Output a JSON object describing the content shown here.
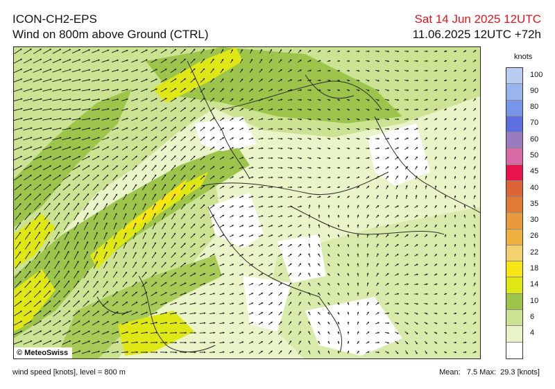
{
  "header": {
    "model": "ICON-CH2-EPS",
    "field": "Wind on 800m above Ground (CTRL)",
    "valid_time": "Sat 14 Jun 2025 12UTC",
    "run_time": "11.06.2025 12UTC +72h"
  },
  "map": {
    "copyright": "© MeteoSwiss",
    "background_color": "#fbfef0",
    "arrow_color": "#111111",
    "border_color": "#2a2a2a"
  },
  "legend": {
    "unit": "knots",
    "classes": [
      {
        "label": "100",
        "color": "#b9cdf3"
      },
      {
        "label": "90",
        "color": "#9ab4f0"
      },
      {
        "label": "80",
        "color": "#7896ea"
      },
      {
        "label": "70",
        "color": "#5c6ee0"
      },
      {
        "label": "60",
        "color": "#9b7bc0"
      },
      {
        "label": "50",
        "color": "#d96aa5"
      },
      {
        "label": "45",
        "color": "#e8134a"
      },
      {
        "label": "40",
        "color": "#de6436"
      },
      {
        "label": "35",
        "color": "#e07a35"
      },
      {
        "label": "30",
        "color": "#e89a3c"
      },
      {
        "label": "26",
        "color": "#f0b040"
      },
      {
        "label": "22",
        "color": "#f3d070"
      },
      {
        "label": "18",
        "color": "#f8e512"
      },
      {
        "label": "14",
        "color": "#dfe815"
      },
      {
        "label": "10",
        "color": "#9ec54b"
      },
      {
        "label": "6",
        "color": "#cde394"
      },
      {
        "label": "4",
        "color": "#e8f3c8"
      },
      {
        "label": "",
        "color": "#ffffff"
      }
    ]
  },
  "footer": {
    "left": "wind speed [knots], level = 800 m",
    "right": "Mean:   7.5 Max:  29.3 [knots]"
  }
}
